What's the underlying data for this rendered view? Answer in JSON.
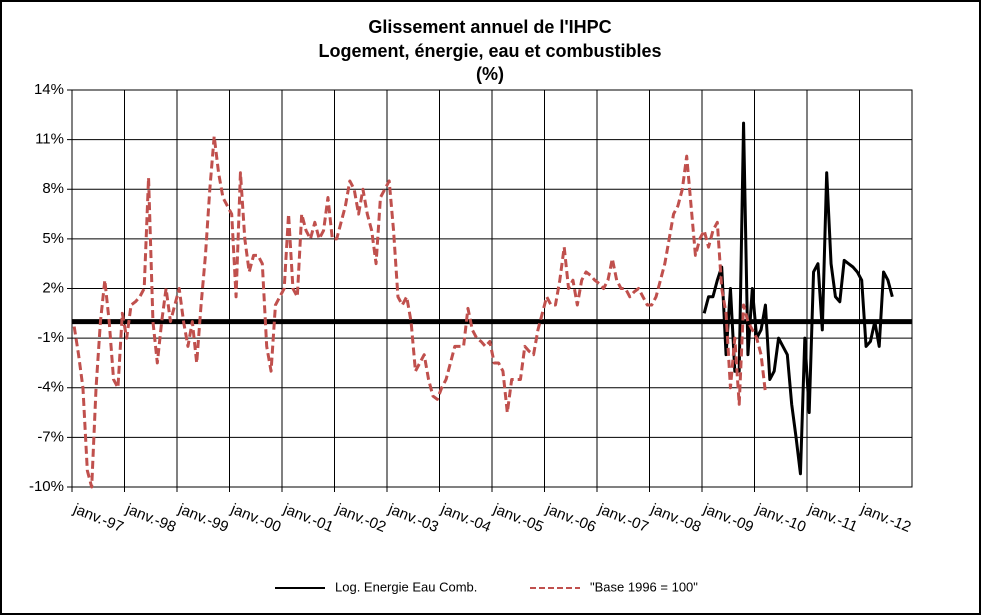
{
  "chart_data": {
    "type": "line",
    "title": "Glissement annuel de l'IHPC",
    "subtitle": "Logement, énergie, eau et combustibles",
    "unit_label": "(%)",
    "categories": [
      "janv.-97",
      null,
      null,
      null,
      null,
      null,
      null,
      null,
      null,
      null,
      null,
      null,
      "janv.-98",
      null,
      null,
      null,
      null,
      null,
      null,
      null,
      null,
      null,
      null,
      null,
      "janv.-99",
      null,
      null,
      null,
      null,
      null,
      null,
      null,
      null,
      null,
      null,
      null,
      "janv.-00",
      null,
      null,
      null,
      null,
      null,
      null,
      null,
      null,
      null,
      null,
      null,
      "janv.-01",
      null,
      null,
      null,
      null,
      null,
      null,
      null,
      null,
      null,
      null,
      null,
      "janv.-02",
      null,
      null,
      null,
      null,
      null,
      null,
      null,
      null,
      null,
      null,
      null,
      "janv.-03",
      null,
      null,
      null,
      null,
      null,
      null,
      null,
      null,
      null,
      null,
      null,
      "janv.-04",
      null,
      null,
      null,
      null,
      null,
      null,
      null,
      null,
      null,
      null,
      null,
      "janv.-05",
      null,
      null,
      null,
      null,
      null,
      null,
      null,
      null,
      null,
      null,
      null,
      "janv.-06",
      null,
      null,
      null,
      null,
      null,
      null,
      null,
      null,
      null,
      null,
      null,
      "janv.-07",
      null,
      null,
      null,
      null,
      null,
      null,
      null,
      null,
      null,
      null,
      null,
      "janv.-08",
      null,
      null,
      null,
      null,
      null,
      null,
      null,
      null,
      null,
      null,
      null,
      "janv.-09",
      null,
      null,
      null,
      null,
      null,
      null,
      null,
      null,
      null,
      null,
      null,
      "janv.-10",
      null,
      null,
      null,
      null,
      null,
      null,
      null,
      null,
      null,
      null,
      null,
      "janv.-11",
      null,
      null,
      null,
      null,
      null,
      null,
      null,
      null,
      null,
      null,
      null,
      "janv.-12",
      null,
      null,
      null,
      null,
      null,
      null,
      null,
      null,
      null,
      null,
      null
    ],
    "series": [
      {
        "name": "Log. Energie Eau Comb.",
        "color": "#000000",
        "dashed": false,
        "values": [
          null,
          null,
          null,
          null,
          null,
          null,
          null,
          null,
          null,
          null,
          null,
          null,
          null,
          null,
          null,
          null,
          null,
          null,
          null,
          null,
          null,
          null,
          null,
          null,
          null,
          null,
          null,
          null,
          null,
          null,
          null,
          null,
          null,
          null,
          null,
          null,
          null,
          null,
          null,
          null,
          null,
          null,
          null,
          null,
          null,
          null,
          null,
          null,
          null,
          null,
          null,
          null,
          null,
          null,
          null,
          null,
          null,
          null,
          null,
          null,
          null,
          null,
          null,
          null,
          null,
          null,
          null,
          null,
          null,
          null,
          null,
          null,
          null,
          null,
          null,
          null,
          null,
          null,
          null,
          null,
          null,
          null,
          null,
          null,
          null,
          null,
          null,
          null,
          null,
          null,
          null,
          null,
          null,
          null,
          null,
          null,
          null,
          null,
          null,
          null,
          null,
          null,
          null,
          null,
          null,
          null,
          null,
          null,
          null,
          null,
          null,
          null,
          null,
          null,
          null,
          null,
          null,
          null,
          null,
          null,
          null,
          null,
          null,
          null,
          null,
          null,
          null,
          null,
          null,
          null,
          null,
          null,
          null,
          null,
          null,
          null,
          null,
          null,
          null,
          null,
          null,
          null,
          null,
          null,
          0.5,
          1.5,
          1.5,
          2.5,
          3.3,
          -2,
          2,
          -3,
          -3,
          12,
          -2,
          2,
          -1,
          -0.5,
          1,
          -3.5,
          -3,
          -1,
          -1.5,
          -2,
          -5,
          -7,
          -9.2,
          -1,
          -5.5,
          3,
          3.5,
          -0.5,
          9,
          3.5,
          1.5,
          1.2,
          3.7,
          3.5,
          3.3,
          3,
          2.5,
          -1.5,
          -1.2,
          0,
          -1.5,
          3,
          2.5,
          1.5,
          null,
          null,
          null,
          null
        ]
      },
      {
        "name": "\"Base 1996 = 100\"",
        "color": "#c0504d",
        "dashed": true,
        "values": [
          -0.3,
          -2,
          -4,
          -9,
          -10,
          -4,
          0,
          2.5,
          0,
          -3.5,
          -4,
          0.5,
          -1,
          1,
          1.2,
          1.5,
          2,
          8.7,
          0,
          -2.5,
          0,
          2,
          0,
          1,
          2,
          0,
          -1.5,
          0,
          -2.5,
          1,
          4,
          8,
          11.2,
          9,
          7.5,
          7,
          6.5,
          1.5,
          9,
          5,
          3,
          4,
          4,
          3.5,
          -1.5,
          -3,
          1,
          1.5,
          2,
          6.5,
          2,
          1.5,
          6.5,
          5.5,
          5,
          6,
          5,
          5.5,
          7.5,
          5,
          5,
          6,
          7,
          8.5,
          8,
          6.5,
          8,
          6.5,
          5.5,
          3.5,
          7.5,
          8,
          8.5,
          5.5,
          1.5,
          1,
          1.5,
          0,
          -3,
          -2.5,
          -2,
          -3.5,
          -4.5,
          -4.7,
          -4,
          -3.5,
          -2.5,
          -1.5,
          -1.5,
          -1.5,
          0.8,
          -0.5,
          -1,
          -1.2,
          -1.5,
          -1.2,
          -2.5,
          -2.5,
          -3,
          -5.5,
          -3.5,
          -3.5,
          -3.5,
          -1.5,
          -1.8,
          -2,
          -0.5,
          0.5,
          1.5,
          1,
          1,
          2.5,
          4.5,
          2,
          2.5,
          1,
          2.5,
          3,
          2.8,
          2.5,
          2.3,
          2,
          2.5,
          3.8,
          2.5,
          2,
          2,
          1.5,
          1.8,
          2,
          1.5,
          1,
          1,
          1.5,
          2.5,
          3.5,
          5,
          6.5,
          7,
          8,
          10,
          7,
          4,
          5,
          5.5,
          4.5,
          5.5,
          6,
          2,
          0.5,
          -4,
          -1,
          -5,
          1,
          0,
          -0.5,
          -1,
          -2,
          -4.3,
          null,
          null,
          null,
          null,
          null,
          null,
          null,
          null,
          null,
          null,
          null,
          null,
          null,
          null,
          null,
          null,
          null,
          null,
          null,
          null,
          null,
          null,
          null,
          null,
          null,
          null,
          null,
          null,
          null,
          null,
          null,
          null,
          null
        ]
      }
    ],
    "ylim": [
      -10,
      14
    ],
    "yticks": [
      {
        "value": -10,
        "label": "-10%"
      },
      {
        "value": -7,
        "label": "-7%"
      },
      {
        "value": -4,
        "label": "-4%"
      },
      {
        "value": -1,
        "label": "-1%"
      },
      {
        "value": 2,
        "label": "2%"
      },
      {
        "value": 5,
        "label": "5%"
      },
      {
        "value": 8,
        "label": "8%"
      },
      {
        "value": 11,
        "label": "11%"
      },
      {
        "value": 14,
        "label": "14%"
      }
    ],
    "reference_line": 0,
    "grid": true,
    "legend": "bottom"
  }
}
